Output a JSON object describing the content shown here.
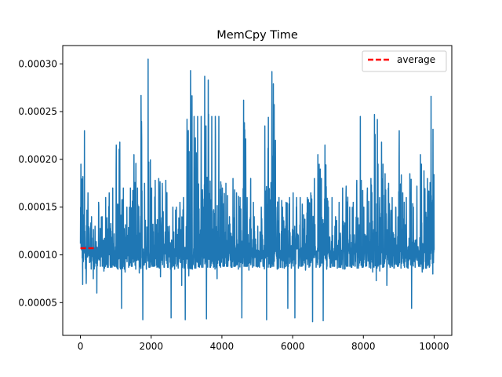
{
  "chart_data": {
    "type": "line",
    "title": "MemCpy Time",
    "xlabel": "",
    "ylabel": "",
    "xlim": [
      -500,
      10500
    ],
    "ylim": [
      1.57e-05,
      0.0003192
    ],
    "x_ticks": [
      {
        "value": 0,
        "label": "0"
      },
      {
        "value": 2000,
        "label": "2000"
      },
      {
        "value": 4000,
        "label": "4000"
      },
      {
        "value": 6000,
        "label": "6000"
      },
      {
        "value": 8000,
        "label": "8000"
      },
      {
        "value": 10000,
        "label": "10000"
      }
    ],
    "y_ticks": [
      {
        "value": 5e-05,
        "label": "0.00005"
      },
      {
        "value": 0.0001,
        "label": "0.00010"
      },
      {
        "value": 0.00015,
        "label": "0.00015"
      },
      {
        "value": 0.0002,
        "label": "0.00020"
      },
      {
        "value": 0.00025,
        "label": "0.00025"
      },
      {
        "value": 0.0003,
        "label": "0.00030"
      }
    ],
    "grid": false,
    "legend": {
      "position": "top-right",
      "entries": [
        {
          "label": "average",
          "style": "dashed",
          "color": "#ff0000"
        }
      ]
    },
    "series": [
      {
        "name": "",
        "color": "#1f77b4",
        "description": "per-iteration memcpy time, ~10000 samples (approximate envelope, sampled every 100)",
        "x": [
          0,
          100,
          200,
          300,
          400,
          500,
          600,
          700,
          800,
          900,
          1000,
          1100,
          1200,
          1300,
          1400,
          1500,
          1600,
          1700,
          1800,
          1900,
          2000,
          2100,
          2200,
          2300,
          2400,
          2500,
          2600,
          2700,
          2800,
          2900,
          3000,
          3100,
          3200,
          3300,
          3400,
          3500,
          3600,
          3700,
          3800,
          3900,
          4000,
          4100,
          4200,
          4300,
          4400,
          4500,
          4600,
          4700,
          4800,
          4900,
          5000,
          5100,
          5200,
          5300,
          5400,
          5500,
          5600,
          5700,
          5800,
          5900,
          6000,
          6100,
          6200,
          6300,
          6400,
          6500,
          6600,
          6700,
          6800,
          6900,
          7000,
          7100,
          7200,
          7300,
          7400,
          7500,
          7600,
          7700,
          7800,
          7900,
          8000,
          8100,
          8200,
          8300,
          8400,
          8500,
          8600,
          8700,
          8800,
          8900,
          9000,
          9100,
          9200,
          9300,
          9400,
          9500,
          9600,
          9700,
          9800,
          9900,
          10000
        ],
        "high": [
          0.000195,
          0.00023,
          0.000165,
          0.00014,
          0.00013,
          0.000155,
          0.00014,
          0.00016,
          0.000165,
          0.00017,
          0.000215,
          0.000218,
          0.00017,
          0.00015,
          0.00017,
          0.000205,
          0.00017,
          0.000267,
          0.000175,
          0.000305,
          0.00017,
          0.000178,
          0.00018,
          0.000175,
          0.000178,
          0.00013,
          0.00015,
          0.00015,
          0.000155,
          0.00016,
          0.000242,
          0.000293,
          0.000245,
          0.000245,
          0.000245,
          0.000287,
          0.000283,
          0.000245,
          0.000245,
          0.000245,
          0.00017,
          0.000175,
          0.00014,
          0.00018,
          0.000165,
          0.00016,
          0.000262,
          0.00016,
          0.00018,
          0.00014,
          0.00013,
          0.00015,
          0.000235,
          0.000244,
          0.000292,
          0.00022,
          0.00016,
          0.00015,
          0.000155,
          0.00016,
          0.000165,
          0.00016,
          0.00016,
          0.000142,
          0.00016,
          0.000165,
          0.00018,
          0.000205,
          0.00018,
          0.000215,
          0.00015,
          0.00016,
          0.00014,
          0.000155,
          0.00017,
          0.000172,
          0.00015,
          0.000155,
          0.000178,
          0.000245,
          0.00015,
          0.00017,
          0.00018,
          0.000247,
          0.000195,
          0.000218,
          0.000185,
          0.000175,
          0.00016,
          0.00015,
          0.00023,
          0.000165,
          0.00016,
          0.000185,
          0.00015,
          0.000172,
          0.000205,
          0.000188,
          0.00018,
          0.000266,
          0.000135
        ],
        "low": [
          6.9e-05,
          7e-05,
          9.2e-05,
          7.5e-05,
          6e-05,
          8.8e-05,
          8.3e-05,
          8.7e-05,
          8.7e-05,
          8.8e-05,
          8.5e-05,
          4.4e-05,
          8.2e-05,
          8.7e-05,
          8.8e-05,
          8.5e-05,
          8.1e-05,
          3.2e-05,
          8.5e-05,
          8.7e-05,
          8.8e-05,
          8.7e-05,
          7.7e-05,
          8.7e-05,
          8.7e-05,
          3.4e-05,
          8.5e-05,
          8.6e-05,
          6.8e-05,
          3.2e-05,
          7.8e-05,
          8.5e-05,
          8.6e-05,
          8.7e-05,
          8.7e-05,
          3.3e-05,
          8.7e-05,
          8.7e-05,
          7.5e-05,
          8.7e-05,
          8.8e-05,
          8.8e-05,
          8.7e-05,
          8.8e-05,
          8.5e-05,
          3.4e-05,
          8.8e-05,
          8.4e-05,
          8.7e-05,
          8.8e-05,
          8.7e-05,
          8.8e-05,
          3.2e-05,
          8.7e-05,
          8.8e-05,
          8.5e-05,
          8.7e-05,
          8.6e-05,
          4.4e-05,
          8.6e-05,
          3.4e-05,
          8.6e-05,
          8.8e-05,
          8.4e-05,
          8.7e-05,
          3e-05,
          8.7e-05,
          8.7e-05,
          3.1e-05,
          8.5e-05,
          8.7e-05,
          8.8e-05,
          8.6e-05,
          8.7e-05,
          8.5e-05,
          8.8e-05,
          8.7e-05,
          8.8e-05,
          8.6e-05,
          8.7e-05,
          8.8e-05,
          8.7e-05,
          8.2e-05,
          7.3e-05,
          8.3e-05,
          8.7e-05,
          6.8e-05,
          8.7e-05,
          8.6e-05,
          8.8e-05,
          8.6e-05,
          8.7e-05,
          8.6e-05,
          4.4e-05,
          8.7e-05,
          8.8e-05,
          8.2e-05,
          8.6e-05,
          8.7e-05,
          8e-05,
          9e-05
        ],
        "base": 9.5e-05
      },
      {
        "name": "average",
        "style": "dashed",
        "color": "#ff0000",
        "x": [
          0,
          450
        ],
        "values": [
          0.000107,
          0.000107
        ]
      }
    ]
  }
}
